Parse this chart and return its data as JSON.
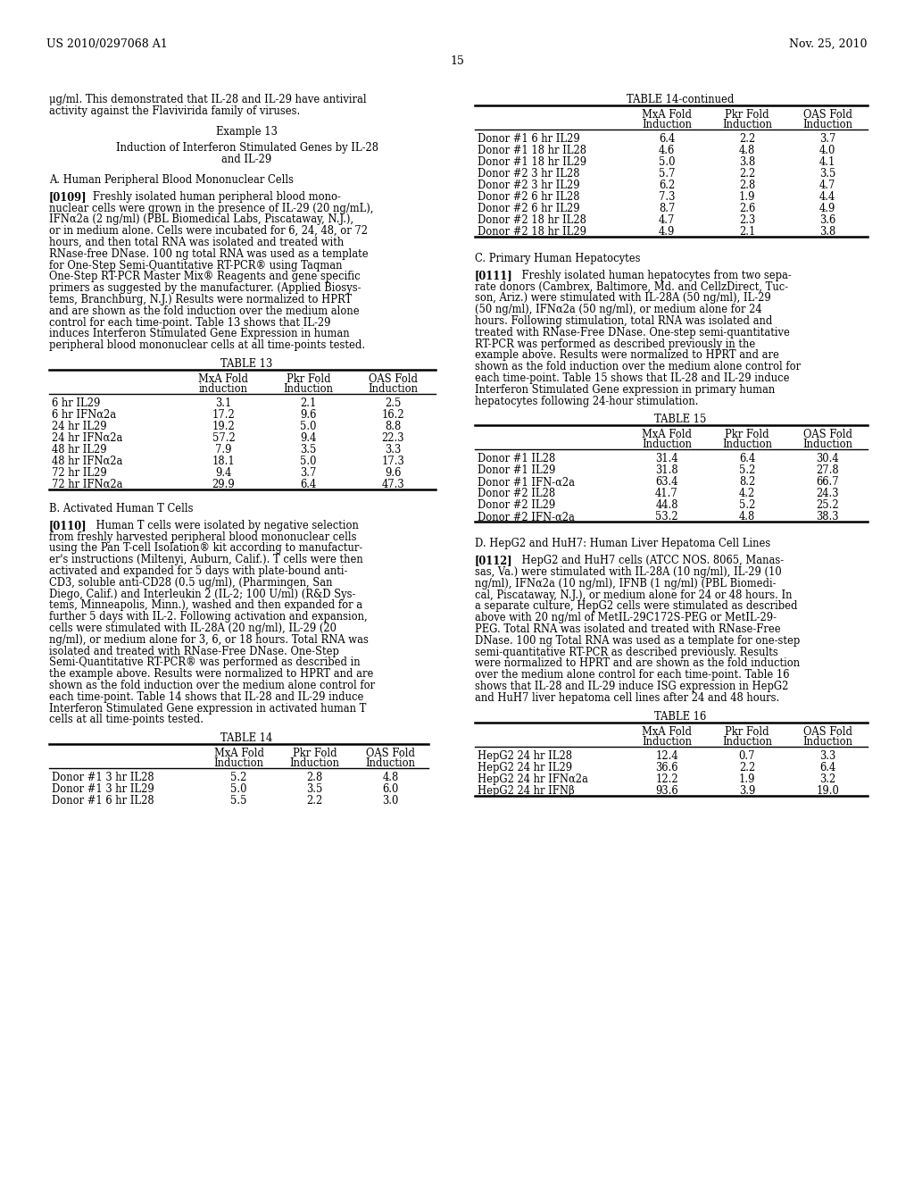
{
  "bg_color": "#ffffff",
  "header_left": "US 2010/0297068 A1",
  "header_right": "Nov. 25, 2010",
  "page_number": "15",
  "table13": {
    "headers": [
      "",
      "MxA Fold\ninduction",
      "Pkr Fold\nInduction",
      "OAS Fold\nInduction"
    ],
    "rows": [
      [
        "6 hr IL29",
        "3.1",
        "2.1",
        "2.5"
      ],
      [
        "6 hr IFNα2a",
        "17.2",
        "9.6",
        "16.2"
      ],
      [
        "24 hr IL29",
        "19.2",
        "5.0",
        "8.8"
      ],
      [
        "24 hr IFNα2a",
        "57.2",
        "9.4",
        "22.3"
      ],
      [
        "48 hr IL29",
        "7.9",
        "3.5",
        "3.3"
      ],
      [
        "48 hr IFNα2a",
        "18.1",
        "5.0",
        "17.3"
      ],
      [
        "72 hr IL29",
        "9.4",
        "3.7",
        "9.6"
      ],
      [
        "72 hr IFNα2a",
        "29.9",
        "6.4",
        "47.3"
      ]
    ]
  },
  "table14": {
    "headers": [
      "",
      "MxA Fold\nInduction",
      "Pkr Fold\nInduction",
      "OAS Fold\nInduction"
    ],
    "rows": [
      [
        "Donor #1 3 hr IL28",
        "5.2",
        "2.8",
        "4.8"
      ],
      [
        "Donor #1 3 hr IL29",
        "5.0",
        "3.5",
        "6.0"
      ],
      [
        "Donor #1 6 hr IL28",
        "5.5",
        "2.2",
        "3.0"
      ]
    ]
  },
  "table14_continued": {
    "headers": [
      "",
      "MxA Fold\nInduction",
      "Pkr Fold\nInduction",
      "OAS Fold\nInduction"
    ],
    "rows": [
      [
        "Donor #1 6 hr IL29",
        "6.4",
        "2.2",
        "3.7"
      ],
      [
        "Donor #1 18 hr IL28",
        "4.6",
        "4.8",
        "4.0"
      ],
      [
        "Donor #1 18 hr IL29",
        "5.0",
        "3.8",
        "4.1"
      ],
      [
        "Donor #2 3 hr IL28",
        "5.7",
        "2.2",
        "3.5"
      ],
      [
        "Donor #2 3 hr IL29",
        "6.2",
        "2.8",
        "4.7"
      ],
      [
        "Donor #2 6 hr IL28",
        "7.3",
        "1.9",
        "4.4"
      ],
      [
        "Donor #2 6 hr IL29",
        "8.7",
        "2.6",
        "4.9"
      ],
      [
        "Donor #2 18 hr IL28",
        "4.7",
        "2.3",
        "3.6"
      ],
      [
        "Donor #2 18 hr IL29",
        "4.9",
        "2.1",
        "3.8"
      ]
    ]
  },
  "table15": {
    "headers": [
      "",
      "MxA Fold\nInduction",
      "Pkr Fold\nInduction",
      "OAS Fold\nInduction"
    ],
    "rows": [
      [
        "Donor #1 IL28",
        "31.4",
        "6.4",
        "30.4"
      ],
      [
        "Donor #1 IL29",
        "31.8",
        "5.2",
        "27.8"
      ],
      [
        "Donor #1 IFN-α2a",
        "63.4",
        "8.2",
        "66.7"
      ],
      [
        "Donor #2 IL28",
        "41.7",
        "4.2",
        "24.3"
      ],
      [
        "Donor #2 IL29",
        "44.8",
        "5.2",
        "25.2"
      ],
      [
        "Donor #2 IFN-α2a",
        "53.2",
        "4.8",
        "38.3"
      ]
    ]
  },
  "table16": {
    "headers": [
      "",
      "MxA Fold\nInduction",
      "Pkr Fold\nInduction",
      "OAS Fold\nInduction"
    ],
    "rows": [
      [
        "HepG2 24 hr IL28",
        "12.4",
        "0.7",
        "3.3"
      ],
      [
        "HepG2 24 hr IL29",
        "36.6",
        "2.2",
        "6.4"
      ],
      [
        "HepG2 24 hr IFNα2a",
        "12.2",
        "1.9",
        "3.2"
      ],
      [
        "HepG2 24 hr IFNβ",
        "93.6",
        "3.9",
        "19.0"
      ]
    ]
  }
}
